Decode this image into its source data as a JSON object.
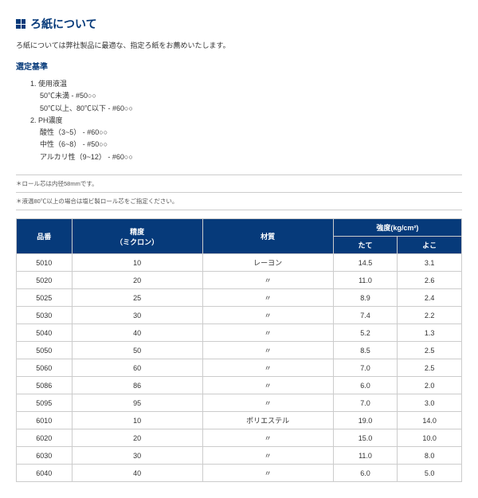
{
  "title": "ろ紙について",
  "intro": "ろ紙については弊社製品に最適な、指定ろ紙をお薦めいたします。",
  "criteria_head": "選定基準",
  "criteria": [
    "1. 使用液温",
    "50℃未満 - #50○○",
    "50℃以上、80℃以下 - #60○○",
    "2. PH濃度",
    "酸性（3~5） - #60○○",
    "中性（6~8） - #50○○",
    "アルカリ性（9~12） - #60○○"
  ],
  "notes": [
    "＊ロール芯は内径58mmです。",
    "＊液温80℃以上の場合は塩ビ製ロール芯をご指定ください。"
  ],
  "table": {
    "headers": {
      "col0": "品番",
      "col1": "精度\n（ミクロン）",
      "col2": "材質",
      "col3": "強度(kg/cm²)",
      "sub_tate": "たて",
      "sub_yoko": "よこ"
    },
    "rows": [
      [
        "5010",
        "10",
        "レーヨン",
        "14.5",
        "3.1"
      ],
      [
        "5020",
        "20",
        "〃",
        "11.0",
        "2.6"
      ],
      [
        "5025",
        "25",
        "〃",
        "8.9",
        "2.4"
      ],
      [
        "5030",
        "30",
        "〃",
        "7.4",
        "2.2"
      ],
      [
        "5040",
        "40",
        "〃",
        "5.2",
        "1.3"
      ],
      [
        "5050",
        "50",
        "〃",
        "8.5",
        "2.5"
      ],
      [
        "5060",
        "60",
        "〃",
        "7.0",
        "2.5"
      ],
      [
        "5086",
        "86",
        "〃",
        "6.0",
        "2.0"
      ],
      [
        "5095",
        "95",
        "〃",
        "7.0",
        "3.0"
      ],
      [
        "6010",
        "10",
        "ポリエステル",
        "19.0",
        "14.0"
      ],
      [
        "6020",
        "20",
        "〃",
        "15.0",
        "10.0"
      ],
      [
        "6030",
        "30",
        "〃",
        "11.0",
        "8.0"
      ],
      [
        "6040",
        "40",
        "〃",
        "6.0",
        "5.0"
      ]
    ]
  },
  "colors": {
    "brand": "#063a7a",
    "border": "#cccccc",
    "bg": "#ffffff"
  }
}
